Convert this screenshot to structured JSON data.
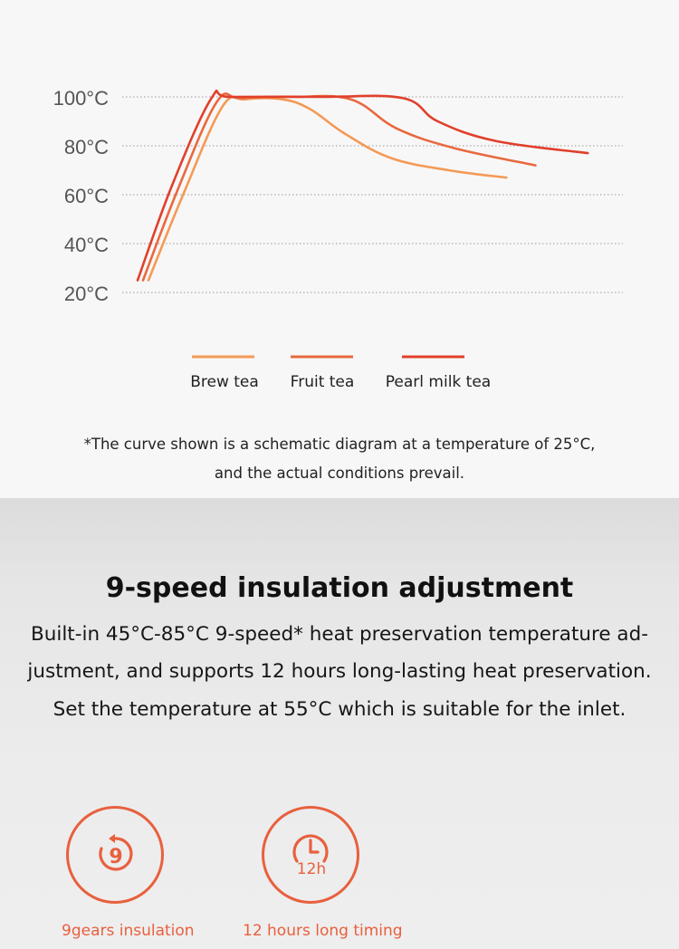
{
  "chart_data": {
    "type": "line",
    "y_ticks": [
      "100°C",
      "80°C",
      "60°C",
      "40°C",
      "20°C"
    ],
    "y_tick_values": [
      100,
      80,
      60,
      40,
      20
    ],
    "ylim": [
      20,
      100
    ],
    "grid": "dotted horizontal",
    "legend_placement": "bottom",
    "series": [
      {
        "name": "Brew tea",
        "color": "#f39a56",
        "points": [
          [
            0,
            25
          ],
          [
            1.5,
            60
          ],
          [
            3.2,
            96
          ],
          [
            4.2,
            99
          ],
          [
            5.8,
            99
          ],
          [
            7.0,
            95
          ],
          [
            8.5,
            85
          ],
          [
            10.5,
            75
          ],
          [
            13.0,
            70
          ],
          [
            15.5,
            67
          ]
        ]
      },
      {
        "name": "Fruit tea",
        "color": "#e8693f",
        "points": [
          [
            0,
            25
          ],
          [
            1.5,
            62
          ],
          [
            3.2,
            98
          ],
          [
            4.2,
            99.5
          ],
          [
            6.5,
            100
          ],
          [
            9.0,
            99
          ],
          [
            11.0,
            87
          ],
          [
            13.5,
            79
          ],
          [
            17.0,
            72
          ]
        ]
      },
      {
        "name": "Pearl milk tea",
        "color": "#e0402b",
        "points": [
          [
            0,
            25
          ],
          [
            1.5,
            64
          ],
          [
            3.2,
            99.5
          ],
          [
            4.0,
            100
          ],
          [
            8.0,
            100
          ],
          [
            11.5,
            99.5
          ],
          [
            13.0,
            90
          ],
          [
            15.5,
            82
          ],
          [
            19.5,
            77
          ]
        ]
      }
    ]
  },
  "note": {
    "line1": "*The curve shown is a schematic diagram at a temperature of 25°C,",
    "line2": "and the actual conditions prevail."
  },
  "section": {
    "heading": "9-speed insulation adjustment",
    "lines": [
      "Built-in 45°C-85°C 9-speed* heat preservation temperature ad-",
      "justment, and supports 12 hours long-lasting heat preservation.",
      "Set the temperature at 55°C which is suitable for the inlet."
    ]
  },
  "features": [
    {
      "icon": "nine-gears-icon",
      "glyph": "9",
      "label": "9gears insulation"
    },
    {
      "icon": "twelve-hour-timer-icon",
      "glyph": "12h",
      "label": "12 hours long timing"
    }
  ],
  "colors": {
    "accent": "#e8603e"
  }
}
